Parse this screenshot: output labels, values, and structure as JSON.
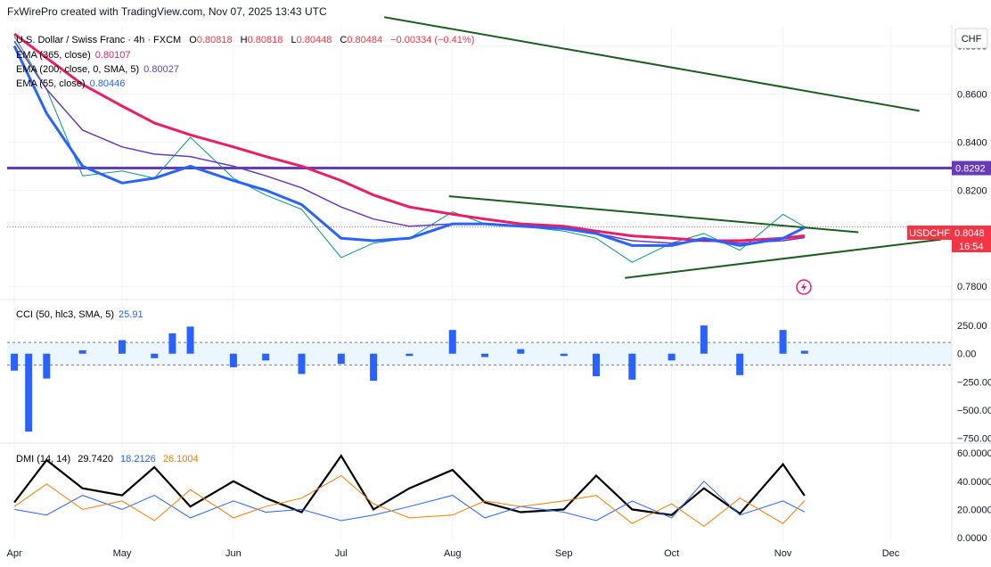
{
  "header": {
    "title": "FxWirePro created with TradingView.com, Nov 07, 2025 13:43 UTC"
  },
  "price_axis_unit": "CHF",
  "symbol_badge": "USDCHF",
  "last_price_label": "0.8048",
  "countdown_label": "16:54",
  "resistance_price_label": "0.8292",
  "colors": {
    "ema365": "#e91e63",
    "ema200": "#673ab7",
    "ema55": "#2962ff",
    "trend": "#1b5e20",
    "horizontal": "#673ab7",
    "cci": "#2962ff",
    "adx": "#000000",
    "di_plus": "#2962ff",
    "di_minus": "#f57c00",
    "badge_red": "#f23645"
  },
  "chart_data": [
    {
      "type": "line",
      "title": "U.S. Dollar / Swiss Franc · 4h · FXCM",
      "ohlc": {
        "o_label": "O",
        "o": "0.80818",
        "h_label": "H",
        "h": "0.80818",
        "l_label": "L",
        "l": "0.80448",
        "c_label": "C",
        "c": "0.80484",
        "change": "−0.00334 (−0.41%)"
      },
      "xlabels": [
        "Apr",
        "May",
        "Jun",
        "Jul",
        "Aug",
        "Sep",
        "Oct",
        "Nov",
        "Dec"
      ],
      "y_ticks": [
        "0.8800",
        "0.8600",
        "0.8400",
        "0.8200",
        "0.7800"
      ],
      "ylim": [
        0.776,
        0.888
      ],
      "indicators": [
        {
          "name": "EMA (365, close)",
          "value": "0.80107"
        },
        {
          "name": "EMA (200, close, 0, SMA, 5)",
          "value": "0.80027"
        },
        {
          "name": "EMA (55, close)",
          "value": "0.80446"
        }
      ],
      "series": [
        {
          "name": "USDCHF",
          "x": [
            "Apr 01",
            "Apr 10",
            "Apr 20",
            "May 01",
            "May 10",
            "May 20",
            "Jun 01",
            "Jun 10",
            "Jun 20",
            "Jul 01",
            "Jul 10",
            "Jul 20",
            "Aug 01",
            "Aug 10",
            "Aug 20",
            "Sep 01",
            "Sep 10",
            "Sep 20",
            "Oct 01",
            "Oct 10",
            "Oct 20",
            "Nov 01",
            "Nov 07"
          ],
          "values": [
            0.884,
            0.862,
            0.826,
            0.828,
            0.825,
            0.842,
            0.825,
            0.818,
            0.812,
            0.792,
            0.798,
            0.8,
            0.811,
            0.806,
            0.805,
            0.803,
            0.8,
            0.79,
            0.798,
            0.802,
            0.795,
            0.81,
            0.8048
          ]
        },
        {
          "name": "EMA (365, close)",
          "x": [
            "Apr 01",
            "Apr 10",
            "Apr 20",
            "May 01",
            "May 10",
            "May 20",
            "Jun 01",
            "Jun 10",
            "Jun 20",
            "Jul 01",
            "Jul 10",
            "Jul 20",
            "Aug 01",
            "Aug 10",
            "Aug 20",
            "Sep 01",
            "Sep 10",
            "Sep 20",
            "Oct 01",
            "Oct 10",
            "Oct 20",
            "Nov 01",
            "Nov 07"
          ],
          "values": [
            0.885,
            0.875,
            0.864,
            0.855,
            0.848,
            0.843,
            0.838,
            0.834,
            0.83,
            0.824,
            0.818,
            0.813,
            0.81,
            0.808,
            0.806,
            0.805,
            0.803,
            0.801,
            0.8,
            0.799,
            0.799,
            0.8,
            0.80107
          ]
        },
        {
          "name": "EMA (200, close, 0, SMA, 5)",
          "x": [
            "Apr 01",
            "Apr 10",
            "Apr 20",
            "May 01",
            "May 10",
            "May 20",
            "Jun 01",
            "Jun 10",
            "Jun 20",
            "Jul 01",
            "Jul 10",
            "Jul 20",
            "Aug 01",
            "Aug 10",
            "Aug 20",
            "Sep 01",
            "Sep 10",
            "Sep 20",
            "Oct 01",
            "Oct 10",
            "Oct 20",
            "Nov 01",
            "Nov 07"
          ],
          "values": [
            0.882,
            0.862,
            0.845,
            0.838,
            0.835,
            0.834,
            0.83,
            0.826,
            0.821,
            0.813,
            0.808,
            0.805,
            0.806,
            0.806,
            0.805,
            0.804,
            0.802,
            0.799,
            0.798,
            0.799,
            0.798,
            0.799,
            0.80027
          ]
        },
        {
          "name": "EMA (55, close)",
          "x": [
            "Apr 01",
            "Apr 10",
            "Apr 20",
            "May 01",
            "May 10",
            "May 20",
            "Jun 01",
            "Jun 10",
            "Jun 20",
            "Jul 01",
            "Jul 10",
            "Jul 20",
            "Aug 01",
            "Aug 10",
            "Aug 20",
            "Sep 01",
            "Sep 10",
            "Sep 20",
            "Oct 01",
            "Oct 10",
            "Oct 20",
            "Nov 01",
            "Nov 07"
          ],
          "values": [
            0.88,
            0.852,
            0.83,
            0.823,
            0.825,
            0.83,
            0.824,
            0.82,
            0.814,
            0.8,
            0.799,
            0.8,
            0.806,
            0.806,
            0.805,
            0.804,
            0.802,
            0.797,
            0.797,
            0.8,
            0.797,
            0.8,
            0.80446
          ]
        }
      ],
      "trendlines": [
        {
          "x": [
            "Jul 13",
            "Dec 09"
          ],
          "values": [
            0.892,
            0.853
          ]
        },
        {
          "x": [
            "Jul 31",
            "Nov 22"
          ],
          "values": [
            0.8175,
            0.8025
          ]
        },
        {
          "x": [
            "Sep 18",
            "Dec 15"
          ],
          "values": [
            0.7835,
            0.7995
          ]
        }
      ],
      "hline": 0.8292
    },
    {
      "type": "bar",
      "title": "CCI (50, hlc3, SMA, 5)",
      "value": "25.91",
      "y_ticks": [
        "250.00",
        "0.00",
        "−250.00",
        "−500.00",
        "−750.00"
      ],
      "ylim": [
        -760,
        290
      ],
      "band": [
        100,
        -100
      ],
      "x": [
        "Apr 01",
        "Apr 05",
        "Apr 10",
        "Apr 20",
        "May 01",
        "May 10",
        "May 15",
        "May 20",
        "Jun 01",
        "Jun 10",
        "Jun 20",
        "Jul 01",
        "Jul 10",
        "Jul 20",
        "Aug 01",
        "Aug 10",
        "Aug 20",
        "Sep 01",
        "Sep 10",
        "Sep 20",
        "Oct 01",
        "Oct 10",
        "Oct 20",
        "Nov 01",
        "Nov 07"
      ],
      "values": [
        -150,
        -690,
        -220,
        30,
        120,
        -40,
        180,
        240,
        -120,
        -60,
        -180,
        -90,
        -240,
        -20,
        210,
        -30,
        40,
        -20,
        -200,
        -230,
        -60,
        250,
        -190,
        210,
        25.91
      ]
    },
    {
      "type": "line",
      "title": "DMI (14, 14)",
      "values_label": [
        "29.7420",
        "18.2126",
        "26.1004"
      ],
      "y_ticks": [
        "60.0000",
        "40.0000",
        "20.0000",
        "0.0000"
      ],
      "ylim": [
        0,
        62
      ],
      "x": [
        "Apr 01",
        "Apr 10",
        "Apr 20",
        "May 01",
        "May 10",
        "May 20",
        "Jun 01",
        "Jun 10",
        "Jun 20",
        "Jul 01",
        "Jul 10",
        "Jul 20",
        "Aug 01",
        "Aug 10",
        "Aug 20",
        "Sep 01",
        "Sep 10",
        "Sep 20",
        "Oct 01",
        "Oct 10",
        "Oct 20",
        "Nov 01",
        "Nov 07"
      ],
      "series": [
        {
          "name": "ADX",
          "values": [
            25,
            55,
            35,
            30,
            50,
            22,
            40,
            28,
            18,
            58,
            20,
            35,
            48,
            25,
            18,
            20,
            44,
            20,
            16,
            35,
            17,
            52,
            29.742
          ]
        },
        {
          "name": "+DI",
          "values": [
            20,
            16,
            30,
            20,
            30,
            14,
            26,
            18,
            20,
            12,
            16,
            22,
            30,
            14,
            22,
            18,
            12,
            26,
            14,
            40,
            16,
            26,
            18.2126
          ]
        },
        {
          "name": "−DI",
          "values": [
            22,
            38,
            20,
            26,
            12,
            34,
            14,
            22,
            28,
            44,
            24,
            14,
            16,
            26,
            22,
            26,
            30,
            10,
            24,
            8,
            28,
            10,
            26.1004
          ]
        }
      ]
    }
  ]
}
